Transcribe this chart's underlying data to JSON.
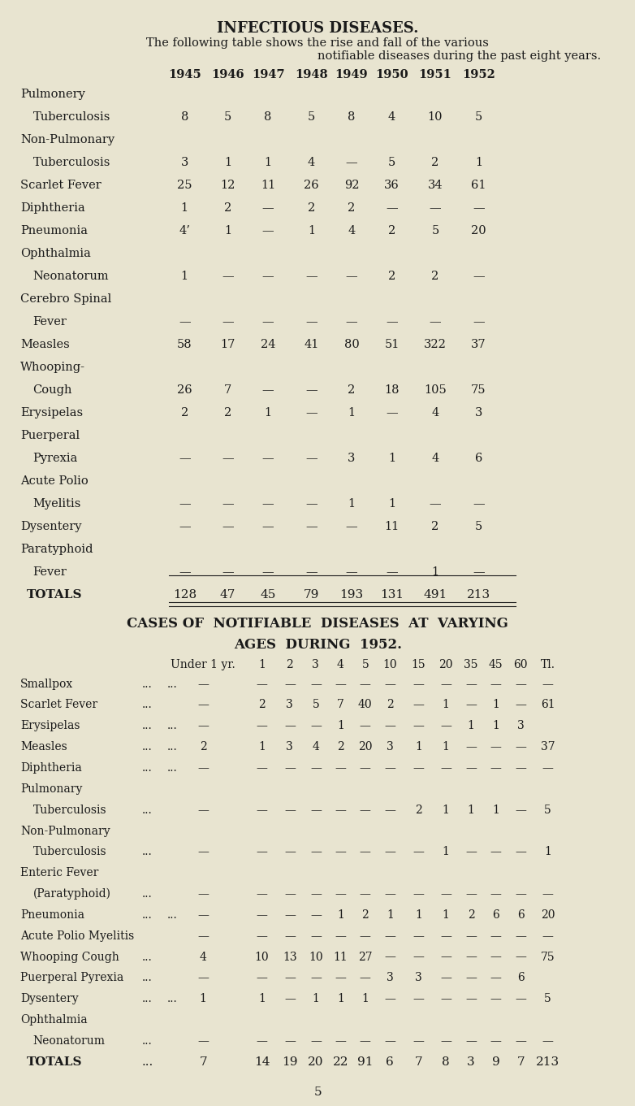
{
  "bg_color": "#e8e4d0",
  "text_color": "#1a1a1a",
  "title": "INFECTIOUS DISEASES.",
  "subtitle1": "The following table shows the rise and fall of the various",
  "subtitle2": "notifiable diseases during the past eight years.",
  "table1_headers": [
    "",
    "1945",
    "1946",
    "1947",
    "1948",
    "1949",
    "1950",
    "1951",
    "1952"
  ],
  "table1_rows": [
    [
      "Pulmonery",
      "",
      "",
      "",
      "",
      "",
      "",
      "",
      ""
    ],
    [
      "  Tuberculosis",
      "8",
      "5",
      "8",
      "5",
      "8",
      "4",
      "10",
      "5"
    ],
    [
      "Non-Pulmonary",
      "",
      "",
      "",
      "",
      "",
      "",
      "",
      ""
    ],
    [
      "  Tuberculosis",
      "3",
      "1",
      "1",
      "4",
      "—",
      "5",
      "2",
      "1"
    ],
    [
      "Scarlet Fever",
      "25",
      "12",
      "11",
      "26",
      "92",
      "36",
      "34",
      "61"
    ],
    [
      "Diphtheria",
      "1",
      "2",
      "—",
      "2",
      "2",
      "—",
      "—",
      "—"
    ],
    [
      "Pneumonia",
      "4’",
      "1",
      "—",
      "1",
      "4",
      "2",
      "5",
      "20"
    ],
    [
      "Ophthalmia",
      "",
      "",
      "",
      "",
      "",
      "",
      "",
      ""
    ],
    [
      "  Neonatorum",
      "1",
      "—",
      "—",
      "—",
      "—",
      "2",
      "2",
      "—"
    ],
    [
      "Cerebro Spinal",
      "",
      "",
      "",
      "",
      "",
      "",
      "",
      ""
    ],
    [
      "  Fever",
      "—",
      "—",
      "—",
      "—",
      "—",
      "—",
      "—",
      "—"
    ],
    [
      "Measles",
      "58",
      "17",
      "24",
      "41",
      "80",
      "51",
      "322",
      "37"
    ],
    [
      "Whooping-",
      "",
      "",
      "",
      "",
      "",
      "",
      "",
      ""
    ],
    [
      "  Cough",
      "26",
      "7",
      "—",
      "—",
      "2",
      "18",
      "105",
      "75"
    ],
    [
      "Erysipelas",
      "2",
      "2",
      "1",
      "—",
      "1",
      "—",
      "4",
      "3"
    ],
    [
      "Puerperal",
      "",
      "",
      "",
      "",
      "",
      "",
      "",
      ""
    ],
    [
      "  Pyrexia",
      "—",
      "—",
      "—",
      "—",
      "3",
      "1",
      "4",
      "6"
    ],
    [
      "Acute Polio",
      "",
      "",
      "",
      "",
      "",
      "",
      "",
      ""
    ],
    [
      "  Myelitis",
      "—",
      "—",
      "—",
      "—",
      "1",
      "1",
      "—",
      "—"
    ],
    [
      "Dysentery",
      "—",
      "—",
      "—",
      "—",
      "—",
      "11",
      "2",
      "5"
    ],
    [
      "Paratyphoid",
      "",
      "",
      "",
      "",
      "",
      "",
      "",
      ""
    ],
    [
      "  Fever",
      "—",
      "—",
      "—",
      "—",
      "—",
      "—",
      "1",
      "—"
    ]
  ],
  "totals_row": [
    "TOTALS",
    "128",
    "47",
    "45",
    "79",
    "193",
    "131",
    "491",
    "213"
  ],
  "section2_title1": "CASES OF  NOTIFIABLE  DISEASES  AT  VARYING",
  "section2_title2": "AGES  DURING  1952.",
  "table2_headers": [
    "",
    "Under 1 yr.",
    "1",
    "2",
    "3",
    "4",
    "5",
    "10",
    "15",
    "20",
    "35",
    "45",
    "60",
    "Tl."
  ],
  "table2_rows": [
    [
      "Smallpox",
      "...",
      "...",
      "—",
      "—",
      "—",
      "—",
      "—",
      "—",
      "—",
      "—",
      "—",
      "—",
      "—",
      "—"
    ],
    [
      "Scarlet Fever",
      "...",
      "—",
      "2",
      "3",
      "5",
      "7",
      "40",
      "2",
      "—",
      "1",
      "—",
      "1",
      "—",
      "61"
    ],
    [
      "Erysipelas",
      "...",
      "...",
      "—",
      "—",
      "—",
      "—",
      "1",
      "—",
      "—",
      "—",
      "—",
      "1",
      "1",
      "3"
    ],
    [
      "Measles",
      "...",
      "...",
      "2",
      "1",
      "3",
      "4",
      "2",
      "20",
      "3",
      "1",
      "1",
      "—",
      "—",
      "—",
      "37"
    ],
    [
      "Diphtheria",
      "...",
      "...",
      "—",
      "—",
      "—",
      "—",
      "—",
      "—",
      "—",
      "—",
      "—",
      "—",
      "—",
      "—"
    ],
    [
      "Pulmonary",
      "",
      "",
      "",
      "",
      "",
      "",
      "",
      "",
      "",
      "",
      "",
      "",
      "",
      ""
    ],
    [
      "  Tuberculosis",
      "...",
      "—",
      "—",
      "—",
      "—",
      "—",
      "—",
      "—",
      "2",
      "1",
      "1",
      "1",
      "—",
      "5"
    ],
    [
      "Non-Pulmonary",
      "",
      "",
      "",
      "",
      "",
      "",
      "",
      "",
      "",
      "",
      "",
      "",
      "",
      ""
    ],
    [
      "  Tuberculosis",
      "...",
      "—",
      "—",
      "—",
      "—",
      "—",
      "—",
      "—",
      "—",
      "1",
      "—",
      "—",
      "—",
      "1"
    ],
    [
      "Enteric Fever",
      "",
      "",
      "",
      "",
      "",
      "",
      "",
      "",
      "",
      "",
      "",
      "",
      "",
      ""
    ],
    [
      "  (Paratyphoid)",
      "...",
      "—",
      "—",
      "—",
      "—",
      "—",
      "—",
      "—",
      "—",
      "—",
      "—",
      "—",
      "—",
      "—"
    ],
    [
      "Pneumonia",
      "...",
      "...",
      "—",
      "—",
      "—",
      "—",
      "1",
      "2",
      "1",
      "1",
      "1",
      "2",
      "6",
      "6",
      "20"
    ],
    [
      "Acute Polio Myelitis",
      "—",
      "—",
      "—",
      "—",
      "—",
      "—",
      "—",
      "—",
      "—",
      "—",
      "—",
      "—",
      "—"
    ],
    [
      "Whooping Cough",
      "...",
      "4",
      "10",
      "13",
      "10",
      "11",
      "27",
      "—",
      "—",
      "—",
      "—",
      "—",
      "—",
      "75"
    ],
    [
      "Puerperal Pyrexia",
      "...",
      "—",
      "—",
      "—",
      "—",
      "—",
      "—",
      "3",
      "3",
      "—",
      "—",
      "—",
      "6"
    ],
    [
      "Dysentery",
      "...",
      "...",
      "1",
      "1",
      "—",
      "1",
      "1",
      "1",
      "—",
      "—",
      "—",
      "—",
      "—",
      "—",
      "5"
    ],
    [
      "Ophthalmia",
      "",
      "",
      "",
      "",
      "",
      "",
      "",
      "",
      "",
      "",
      "",
      "",
      "",
      ""
    ],
    [
      "  Neonatorum",
      "...",
      "—",
      "—",
      "—",
      "—",
      "—",
      "—",
      "—",
      "—",
      "—",
      "—",
      "—",
      "—",
      "—"
    ]
  ],
  "totals2_row": [
    "TOTALS",
    "...",
    "7",
    "14",
    "19",
    "20",
    "22",
    "91",
    "6",
    "7",
    "8",
    "3",
    "9",
    "7",
    "213"
  ],
  "page_number": "5"
}
